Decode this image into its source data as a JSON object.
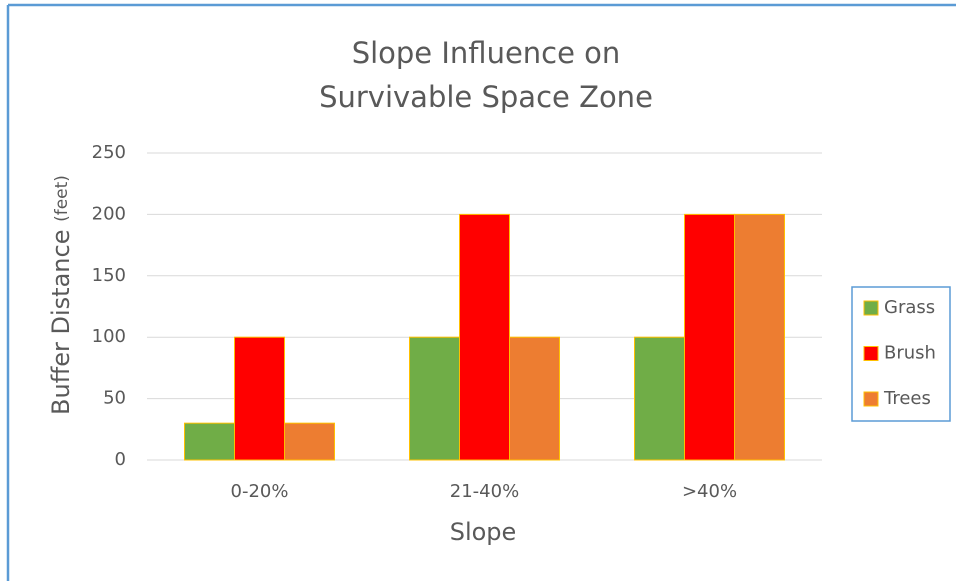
{
  "chart_data": {
    "type": "bar",
    "title": [
      "Slope Influence on",
      "Survivable Space Zone"
    ],
    "xlabel": "Slope",
    "ylabel": "Buffer Distance",
    "ylabel_unit": "(feet)",
    "categories": [
      "0-20%",
      "21-40%",
      ">40%"
    ],
    "series": [
      {
        "name": "Grass",
        "color": "#70ad47",
        "values": [
          30,
          100,
          100
        ]
      },
      {
        "name": "Brush",
        "color": "#ff0000",
        "values": [
          100,
          200,
          200
        ]
      },
      {
        "name": "Trees",
        "color": "#ed7d31",
        "values": [
          30,
          100,
          200
        ]
      }
    ],
    "ylim": [
      0,
      250
    ],
    "yticks": [
      0,
      50,
      100,
      150,
      200,
      250
    ],
    "grid": true,
    "legend": "right"
  }
}
